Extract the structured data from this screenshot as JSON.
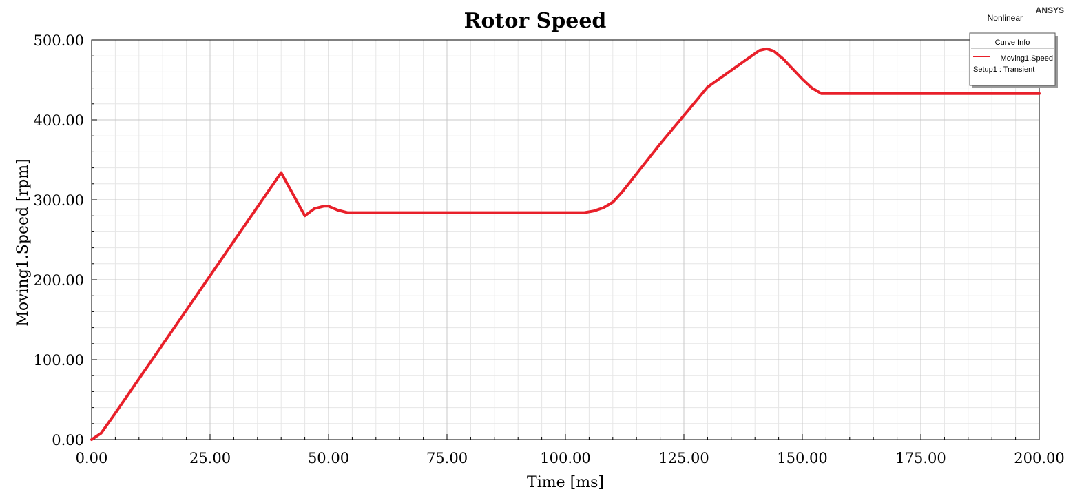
{
  "brand": "ANSYS",
  "mode_label": "Nonlinear",
  "colors": {
    "series": "#e8202a",
    "grid_major": "#c8c8c8",
    "grid_minor": "#e6e6e6",
    "axis": "#000000"
  },
  "legend": {
    "title": "Curve Info",
    "entries": [
      "Moving1.Speed"
    ],
    "setup": "Setup1 : Transient"
  },
  "chart_data": {
    "type": "line",
    "title": "Rotor Speed",
    "xlabel": "Time [ms]",
    "ylabel": "Moving1.Speed [rpm]",
    "xlim": [
      0,
      200
    ],
    "ylim": [
      0,
      500
    ],
    "xticks": [
      "0.00",
      "25.00",
      "50.00",
      "75.00",
      "100.00",
      "125.00",
      "150.00",
      "175.00",
      "200.00"
    ],
    "yticks": [
      "0.00",
      "100.00",
      "200.00",
      "300.00",
      "400.00",
      "500.00"
    ],
    "grid": true,
    "legend_position": "top-right",
    "series": [
      {
        "name": "Moving1.Speed",
        "x": [
          0,
          2,
          5,
          10,
          20,
          30,
          40,
          45,
          47,
          49,
          50,
          52,
          54,
          60,
          80,
          100,
          104,
          106,
          108,
          110,
          112,
          120,
          130,
          140,
          141,
          142.5,
          144,
          146,
          150,
          152,
          154,
          160,
          180,
          200
        ],
        "y": [
          0,
          8,
          33,
          76,
          162,
          248,
          334,
          280,
          289,
          292,
          292,
          287,
          284,
          284,
          284,
          284,
          284,
          286,
          290,
          297,
          310,
          370,
          441,
          483,
          487,
          489,
          486,
          476,
          451,
          440,
          433,
          433,
          433,
          433
        ]
      }
    ]
  }
}
